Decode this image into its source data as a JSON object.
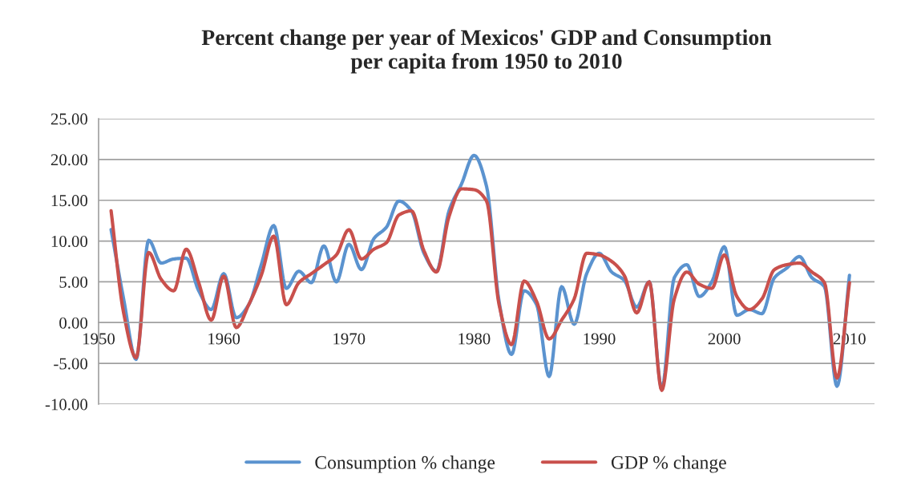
{
  "chart_data": {
    "type": "line",
    "title": "Percent change per year of Mexicos' GDP and Consumption\nper capita from 1950 to 2010",
    "x": [
      1951,
      1952,
      1953,
      1954,
      1955,
      1956,
      1957,
      1958,
      1959,
      1960,
      1961,
      1962,
      1963,
      1964,
      1965,
      1966,
      1967,
      1968,
      1969,
      1970,
      1971,
      1972,
      1973,
      1974,
      1975,
      1976,
      1977,
      1978,
      1979,
      1980,
      1981,
      1982,
      1983,
      1984,
      1985,
      1986,
      1987,
      1988,
      1989,
      1990,
      1991,
      1992,
      1993,
      1994,
      1995,
      1996,
      1997,
      1998,
      1999,
      2000,
      2001,
      2002,
      2003,
      2004,
      2005,
      2006,
      2007,
      2008,
      2009,
      2010
    ],
    "series": [
      {
        "name": "Consumption % change",
        "color": "#5b93cf",
        "values": [
          11.4,
          2.9,
          -4.5,
          10.1,
          7.3,
          7.8,
          7.9,
          3.9,
          1.6,
          6.0,
          0.6,
          2.2,
          7.1,
          11.9,
          4.2,
          6.3,
          4.9,
          9.4,
          5.0,
          9.6,
          6.5,
          10.3,
          11.7,
          14.9,
          13.7,
          8.5,
          6.3,
          13.7,
          17.0,
          20.5,
          16.7,
          2.6,
          -3.9,
          3.9,
          2.2,
          -6.6,
          4.4,
          -0.2,
          6.0,
          8.5,
          6.2,
          5.2,
          1.9,
          5.0,
          -8.1,
          5.5,
          7.1,
          3.2,
          5.0,
          9.3,
          0.9,
          1.6,
          1.1,
          5.5,
          6.7,
          8.1,
          5.5,
          4.4,
          -7.8,
          5.8
        ]
      },
      {
        "name": "GDP % change",
        "color": "#c9504c",
        "values": [
          13.7,
          1.2,
          -4.3,
          8.6,
          5.3,
          3.9,
          9.0,
          4.9,
          0.3,
          5.7,
          -0.6,
          2.2,
          5.8,
          10.6,
          2.2,
          4.9,
          6.0,
          7.1,
          8.3,
          11.4,
          7.8,
          9.0,
          9.8,
          13.2,
          13.7,
          8.8,
          6.2,
          13.0,
          16.4,
          16.3,
          14.9,
          2.2,
          -2.7,
          5.1,
          2.6,
          -2.0,
          0.3,
          2.9,
          8.5,
          8.3,
          7.5,
          5.8,
          1.2,
          5.0,
          -8.3,
          2.9,
          6.2,
          4.7,
          4.2,
          8.3,
          3.2,
          1.6,
          2.9,
          6.5,
          7.1,
          7.3,
          6.2,
          4.9,
          -6.8,
          4.9
        ]
      }
    ],
    "xlim": [
      1950,
      2012
    ],
    "xticks": [
      1950,
      1960,
      1970,
      1980,
      1990,
      2000,
      2010
    ],
    "ylim": [
      -10,
      25
    ],
    "yticks": [
      {
        "value": -10,
        "label": "-10.00"
      },
      {
        "value": -5,
        "label": "-5.00"
      },
      {
        "value": 0,
        "label": "0.00"
      },
      {
        "value": 5,
        "label": "5.00"
      },
      {
        "value": 10,
        "label": "10.00"
      },
      {
        "value": 15,
        "label": "15.00"
      },
      {
        "value": 20,
        "label": "20.00"
      },
      {
        "value": 25,
        "label": "25.00"
      }
    ],
    "grid": "y",
    "legend": "bottom",
    "marker": "none",
    "line_style": "solid"
  }
}
